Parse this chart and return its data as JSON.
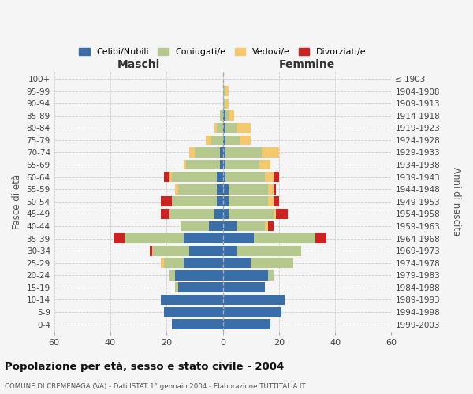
{
  "age_groups": [
    "0-4",
    "5-9",
    "10-14",
    "15-19",
    "20-24",
    "25-29",
    "30-34",
    "35-39",
    "40-44",
    "45-49",
    "50-54",
    "55-59",
    "60-64",
    "65-69",
    "70-74",
    "75-79",
    "80-84",
    "85-89",
    "90-94",
    "95-99",
    "100+"
  ],
  "birth_years": [
    "1999-2003",
    "1994-1998",
    "1989-1993",
    "1984-1988",
    "1979-1983",
    "1974-1978",
    "1969-1973",
    "1964-1968",
    "1959-1963",
    "1954-1958",
    "1949-1953",
    "1944-1948",
    "1939-1943",
    "1934-1938",
    "1929-1933",
    "1924-1928",
    "1919-1923",
    "1914-1918",
    "1909-1913",
    "1904-1908",
    "≤ 1903"
  ],
  "colors": {
    "celibi": "#3a6ea8",
    "coniugati": "#b5c98e",
    "vedovi": "#f5c86e",
    "divorziati": "#cc2222"
  },
  "males": {
    "celibi": [
      18,
      21,
      22,
      16,
      17,
      14,
      12,
      14,
      5,
      3,
      2,
      2,
      2,
      1,
      1,
      0,
      0,
      0,
      0,
      0,
      0
    ],
    "coniugati": [
      0,
      0,
      0,
      1,
      2,
      7,
      13,
      21,
      10,
      16,
      16,
      14,
      16,
      12,
      9,
      4,
      2,
      1,
      0,
      0,
      0
    ],
    "vedovi": [
      0,
      0,
      0,
      0,
      0,
      1,
      0,
      0,
      0,
      0,
      0,
      1,
      1,
      1,
      2,
      2,
      1,
      0,
      0,
      0,
      0
    ],
    "divorziati": [
      0,
      0,
      0,
      0,
      0,
      0,
      1,
      4,
      0,
      3,
      4,
      0,
      2,
      0,
      0,
      0,
      0,
      0,
      0,
      0,
      0
    ]
  },
  "females": {
    "celibi": [
      17,
      21,
      22,
      15,
      16,
      10,
      5,
      11,
      5,
      2,
      2,
      2,
      1,
      1,
      1,
      1,
      1,
      1,
      0,
      0,
      0
    ],
    "coniugati": [
      0,
      0,
      0,
      0,
      2,
      15,
      23,
      22,
      10,
      16,
      14,
      14,
      14,
      12,
      13,
      5,
      4,
      1,
      1,
      1,
      0
    ],
    "vedovi": [
      0,
      0,
      0,
      0,
      0,
      0,
      0,
      0,
      1,
      1,
      2,
      2,
      3,
      4,
      6,
      4,
      5,
      2,
      1,
      1,
      0
    ],
    "divorziati": [
      0,
      0,
      0,
      0,
      0,
      0,
      0,
      4,
      2,
      4,
      2,
      1,
      2,
      0,
      0,
      0,
      0,
      0,
      0,
      0,
      0
    ]
  },
  "xlim": 60,
  "title": "Popolazione per età, sesso e stato civile - 2004",
  "subtitle": "COMUNE DI CREMENAGA (VA) - Dati ISTAT 1° gennaio 2004 - Elaborazione TUTTITALIA.IT",
  "xlabel_left": "Maschi",
  "xlabel_right": "Femmine",
  "ylabel_left": "Fasce di età",
  "ylabel_right": "Anni di nascita",
  "legend_labels": [
    "Celibi/Nubili",
    "Coniugati/e",
    "Vedovi/e",
    "Divorziati/e"
  ],
  "header_color": "#333333",
  "femmine_color": "#333333",
  "background_color": "#f5f5f5"
}
